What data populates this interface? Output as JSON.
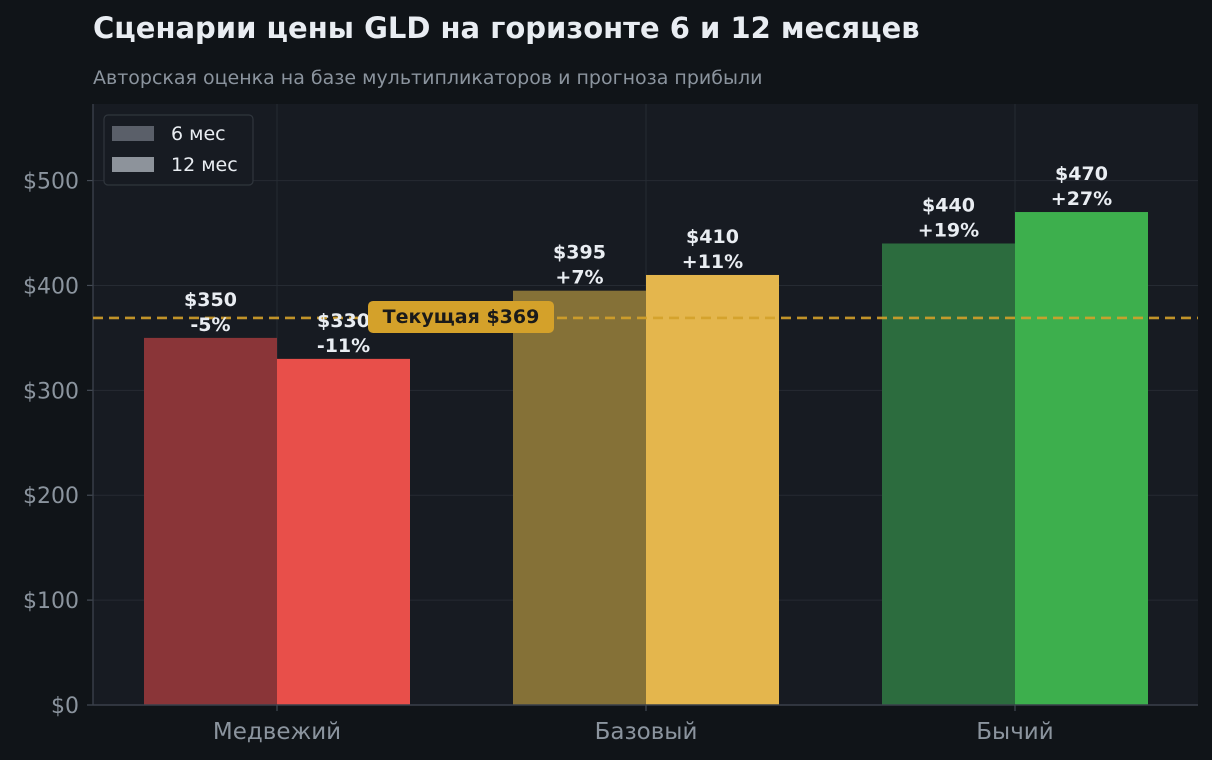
{
  "title": "Сценарии цены GLD на горизонте 6 и 12 месяцев",
  "subtitle": "Авторская оценка на базе мультипликаторов и прогноза прибыли",
  "chart_data": {
    "type": "bar",
    "categories": [
      "Медвежий",
      "Базовый",
      "Бычий"
    ],
    "series": [
      {
        "name": "6 мес",
        "values": [
          350,
          395,
          440
        ],
        "labels": [
          "$350\n-5%",
          "$395\n+7%",
          "$440\n+19%"
        ],
        "colors": [
          "#8a3538",
          "#857137",
          "#2c6c3e"
        ]
      },
      {
        "name": "12 мес",
        "values": [
          330,
          410,
          470
        ],
        "labels": [
          "$330\n-11%",
          "$410\n+11%",
          "$470\n+27%"
        ],
        "colors": [
          "#e84f4a",
          "#e4b64d",
          "#3daf4d"
        ]
      }
    ],
    "legend": {
      "position": "top-left",
      "colors": [
        "#5a5f69",
        "#8d939b"
      ]
    },
    "ylim": [
      0,
      573
    ],
    "yticks": [
      0,
      100,
      200,
      300,
      400,
      500
    ],
    "ytick_labels": [
      "$0",
      "$100",
      "$200",
      "$300",
      "$400",
      "$500"
    ],
    "grid": true,
    "reference_line": {
      "value": 369,
      "label": "Текущая $369",
      "color": "#d4a12a"
    },
    "xlabel": "",
    "ylabel": ""
  },
  "colors": {
    "background": "#101418",
    "plot_background": "#171b22",
    "grid": "#262b33",
    "axis_text": "#8b949e",
    "bar_label": "#e9edf2"
  }
}
